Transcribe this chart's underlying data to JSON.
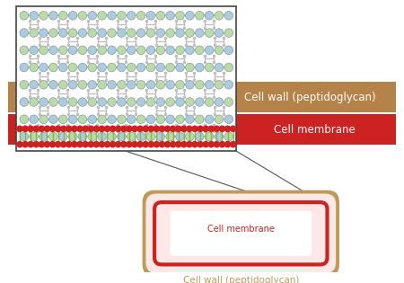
{
  "bg_color": "#ffffff",
  "brown_band_color": "#b5834a",
  "red_band_color": "#cc2222",
  "cell_wall_label": "Cell wall (peptidoglycan)",
  "cell_membrane_label": "Cell membrane",
  "cell_wall_label2": "Cell wall (peptidoglycan)",
  "cell_membrane_label2": "Cell membrane",
  "sugar_color1": "#b8dca8",
  "sugar_color2": "#a8cce0",
  "peptide_color": "#c0c0c0",
  "peptide_edge": "#999999",
  "phospholipid_head_color": "#cc2222",
  "phospholipid_tail_color": "#88bb44",
  "bacterium_fill": "#fde8e8",
  "bacterium_edge": "#c09a5a",
  "bacterium_membrane": "#cc2222"
}
